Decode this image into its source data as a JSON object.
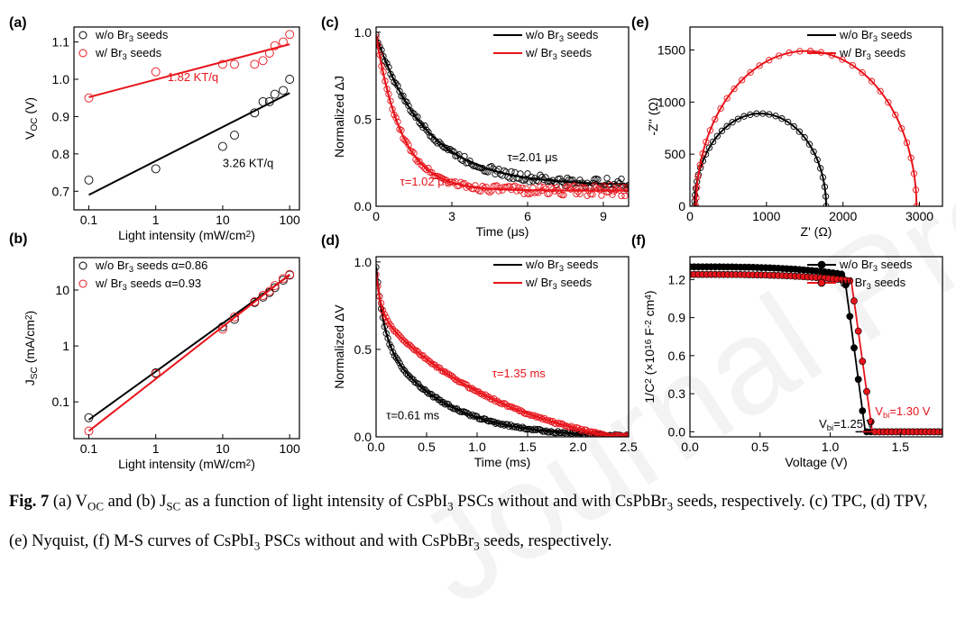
{
  "watermark": "Journal Pre-proofs",
  "caption": {
    "fig_no": "Fig. 7",
    "text_runs": [
      [
        " (a) V",
        ""
      ],
      [
        "OC",
        "sub"
      ],
      [
        " and (b) J",
        ""
      ],
      [
        "SC",
        "sub"
      ],
      [
        " as a function of light intensity of CsPbI",
        ""
      ],
      [
        "3",
        "sub"
      ],
      [
        " PSCs without and with CsPbBr",
        ""
      ],
      [
        "3",
        "sub"
      ],
      [
        " seeds, respectively. (c) TPC, (d) TPV, (e) Nyquist, (f) M-S curves of CsPbI",
        ""
      ],
      [
        "3",
        "sub"
      ],
      [
        " PSCs without and with CsPbBr",
        ""
      ],
      [
        "3",
        "sub"
      ],
      [
        " seeds, respectively.",
        ""
      ]
    ]
  },
  "colors": {
    "black_series": "#000000",
    "red_series": "#e8141b"
  },
  "chart_data": [
    {
      "panel": "(a)",
      "type": "scatter",
      "xscale": "log",
      "xlim": [
        0.06,
        140
      ],
      "ylim": [
        0.65,
        1.14
      ],
      "xticks": [
        0.1,
        1,
        10,
        100
      ],
      "xticklabels": [
        "0.1",
        "1",
        "10",
        "100"
      ],
      "yticks": [
        0.7,
        0.8,
        0.9,
        1.0,
        1.1
      ],
      "yticklabels": [
        "0.7",
        "0.8",
        "0.9",
        "1.0",
        "1.1"
      ],
      "xlabel": [
        [
          "Light intensity (mW/cm",
          ""
        ],
        [
          "2",
          "sup"
        ],
        [
          ")",
          ""
        ]
      ],
      "ylabel": [
        [
          "V",
          ""
        ],
        [
          "OC",
          "sub"
        ],
        [
          " (V)",
          ""
        ]
      ],
      "legend_pos": "top-left",
      "series": [
        {
          "name": [
            [
              "w/o Br",
              ""
            ],
            [
              "3",
              "sub"
            ],
            [
              " seeds",
              ""
            ]
          ],
          "color": "#000000",
          "x": [
            0.1,
            1,
            10,
            15,
            30,
            40,
            50,
            60,
            80,
            100
          ],
          "y": [
            0.73,
            0.76,
            0.82,
            0.85,
            0.91,
            0.94,
            0.94,
            0.96,
            0.97,
            1.0
          ],
          "fit": {
            "x": [
              0.1,
              100
            ],
            "y": [
              0.69,
              0.963
            ]
          }
        },
        {
          "name": [
            [
              "w/  Br",
              ""
            ],
            [
              "3",
              "sub"
            ],
            [
              " seeds",
              ""
            ]
          ],
          "color": "#e8141b",
          "x": [
            0.1,
            1,
            10,
            15,
            30,
            40,
            50,
            60,
            80,
            100
          ],
          "y": [
            0.95,
            1.02,
            1.04,
            1.04,
            1.04,
            1.05,
            1.07,
            1.09,
            1.1,
            1.12
          ],
          "fit": {
            "x": [
              0.1,
              100
            ],
            "y": [
              0.952,
              1.094
            ]
          }
        }
      ],
      "annotations": [
        {
          "text": "1.82 KT/q",
          "color": "#e8141b",
          "x": 1.5,
          "y": 0.995
        },
        {
          "text": "3.26 KT/q",
          "color": "#000000",
          "x": 10,
          "y": 0.765
        }
      ]
    },
    {
      "panel": "(b)",
      "type": "scatter",
      "xscale": "log",
      "yscale": "log",
      "xlim": [
        0.06,
        140
      ],
      "ylim": [
        0.022,
        38
      ],
      "xticks": [
        0.1,
        1,
        10,
        100
      ],
      "xticklabels": [
        "0.1",
        "1",
        "10",
        "100"
      ],
      "yticks": [
        0.1,
        1,
        10
      ],
      "yticklabels": [
        "0.1",
        "1",
        "10"
      ],
      "xlabel": [
        [
          "Light intensity (mW/cm",
          ""
        ],
        [
          "2",
          "sup"
        ],
        [
          ")",
          ""
        ]
      ],
      "ylabel": [
        [
          "J",
          ""
        ],
        [
          "SC",
          "sub"
        ],
        [
          " (mA/cm",
          ""
        ],
        [
          "2",
          "sup"
        ],
        [
          ")",
          ""
        ]
      ],
      "legend_pos": "top-left",
      "series": [
        {
          "name": [
            [
              "w/o Br",
              ""
            ],
            [
              "3",
              "sub"
            ],
            [
              " seeds  α=0.86",
              ""
            ]
          ],
          "color": "#000000",
          "x": [
            0.1,
            1,
            10,
            15,
            30,
            40,
            50,
            60,
            80,
            100
          ],
          "y": [
            0.052,
            0.33,
            2.2,
            3.0,
            6.0,
            7.5,
            9.0,
            11,
            15,
            18.5
          ],
          "fit": {
            "x": [
              0.1,
              100
            ],
            "y": [
              0.048,
              18.5
            ]
          }
        },
        {
          "name": [
            [
              "w/  Br",
              ""
            ],
            [
              "3",
              "sub"
            ],
            [
              " seeds  α=0.93",
              ""
            ]
          ],
          "color": "#e8141b",
          "x": [
            0.1,
            1,
            10,
            15,
            30,
            40,
            50,
            60,
            80,
            100
          ],
          "y": [
            0.03,
            0.32,
            2.0,
            3.3,
            6.2,
            8.0,
            9.5,
            12,
            16,
            19
          ],
          "fit": {
            "x": [
              0.1,
              100
            ],
            "y": [
              0.03,
              19
            ]
          }
        }
      ]
    },
    {
      "panel": "(c)",
      "type": "scatter",
      "xlim": [
        0,
        10
      ],
      "ylim": [
        0,
        1.03
      ],
      "xticks": [
        0,
        3,
        6,
        9
      ],
      "xticklabels": [
        "0",
        "3",
        "6",
        "9"
      ],
      "yticks": [
        0,
        0.5,
        1.0
      ],
      "yticklabels": [
        "0.0",
        "0.5",
        "1.0"
      ],
      "xlabel": [
        [
          "Time (μs)",
          ""
        ]
      ],
      "ylabel": [
        [
          "Normalized ΔJ",
          ""
        ]
      ],
      "legend_pos": "top-right",
      "series": [
        {
          "name": [
            [
              "w/o Br",
              ""
            ],
            [
              "3",
              "sub"
            ],
            [
              " seeds",
              ""
            ]
          ],
          "color": "#000000",
          "decay": {
            "tau": 2.01,
            "a": 0.86,
            "c": 0.12
          }
        },
        {
          "name": [
            [
              "w/   Br",
              ""
            ],
            [
              "3",
              "sub"
            ],
            [
              " seeds",
              ""
            ]
          ],
          "color": "#e8141b",
          "decay": {
            "tau": 1.02,
            "a": 0.89,
            "c": 0.09
          }
        }
      ],
      "annotations": [
        {
          "text": "τ=2.01 μs",
          "color": "#000000",
          "x": 5.2,
          "y": 0.26
        },
        {
          "text": "τ=1.02 μs",
          "color": "#e8141b",
          "x": 0.95,
          "y": 0.12
        }
      ]
    },
    {
      "panel": "(d)",
      "type": "scatter",
      "xlim": [
        0,
        2.5
      ],
      "ylim": [
        0,
        1.03
      ],
      "xticks": [
        0,
        0.5,
        1.0,
        1.5,
        2.0,
        2.5
      ],
      "xticklabels": [
        "0.0",
        "0.5",
        "1.0",
        "1.5",
        "2.0",
        "2.5"
      ],
      "yticks": [
        0,
        0.5,
        1.0
      ],
      "yticklabels": [
        "0.0",
        "0.5",
        "1.0"
      ],
      "xlabel": [
        [
          "Time (ms)",
          ""
        ]
      ],
      "ylabel": [
        [
          "Normalized ΔV",
          ""
        ]
      ],
      "legend_pos": "top-right",
      "series": [
        {
          "name": [
            [
              "w/o Br",
              ""
            ],
            [
              "3",
              "sub"
            ],
            [
              " seeds",
              ""
            ]
          ],
          "color": "#000000",
          "biexp": {
            "a1": 0.38,
            "t1": 0.07,
            "a2": 0.6,
            "t2": 0.61,
            "c": -0.005
          }
        },
        {
          "name": [
            [
              "w/   Br",
              ""
            ],
            [
              "3",
              "sub"
            ],
            [
              " seeds",
              ""
            ]
          ],
          "color": "#e8141b",
          "biexp": {
            "a1": 0.22,
            "t1": 0.05,
            "a2": 0.86,
            "t2": 1.35,
            "c": -0.15
          }
        }
      ],
      "annotations": [
        {
          "text": "τ=1.35 ms",
          "color": "#e8141b",
          "x": 1.15,
          "y": 0.34
        },
        {
          "text": "τ=0.61 ms",
          "color": "#000000",
          "x": 0.1,
          "y": 0.1
        }
      ]
    },
    {
      "panel": "(e)",
      "type": "scatter",
      "xlim": [
        0,
        3300
      ],
      "ylim": [
        0,
        1720
      ],
      "xticks": [
        0,
        1000,
        2000,
        3000
      ],
      "xticklabels": [
        "0",
        "1000",
        "2000",
        "3000"
      ],
      "yticks": [
        0,
        500,
        1000,
        1500
      ],
      "yticklabels": [
        "0",
        "500",
        "1000",
        "1500"
      ],
      "xlabel": [
        [
          "Z' (Ω)",
          ""
        ]
      ],
      "ylabel": [
        [
          "-Z'' (Ω)",
          ""
        ]
      ],
      "legend_pos": "top-right",
      "series": [
        {
          "name": [
            [
              "w/o Br",
              ""
            ],
            [
              "3",
              "sub"
            ],
            [
              " seeds",
              ""
            ]
          ],
          "color": "#000000",
          "arc": {
            "z0": 60,
            "z1": 1780,
            "peak": 890
          }
        },
        {
          "name": [
            [
              "w/  Br",
              ""
            ],
            [
              "3",
              "sub"
            ],
            [
              " seeds",
              ""
            ]
          ],
          "color": "#e8141b",
          "arc": {
            "z0": 80,
            "z1": 2960,
            "peak": 1490
          }
        }
      ]
    },
    {
      "panel": "(f)",
      "type": "line",
      "xlim": [
        0,
        1.8
      ],
      "ylim": [
        -0.04,
        1.38
      ],
      "xticks": [
        0,
        0.5,
        1.0,
        1.5
      ],
      "xticklabels": [
        "0.0",
        "0.5",
        "1.0",
        "1.5"
      ],
      "yticks": [
        0,
        0.3,
        0.6,
        0.9,
        1.2
      ],
      "yticklabels": [
        "0.0",
        "0.3",
        "0.6",
        "0.9",
        "1.2"
      ],
      "xlabel": [
        [
          "Voltage (V)",
          ""
        ]
      ],
      "ylabel": [
        [
          "1/C",
          ""
        ],
        [
          "2",
          "sup"
        ],
        [
          " (×10",
          ""
        ],
        [
          "16",
          "sup"
        ],
        [
          " F",
          ""
        ],
        [
          "-2",
          "sup"
        ],
        [
          " cm",
          ""
        ],
        [
          "4",
          "sup"
        ],
        [
          ")",
          ""
        ]
      ],
      "legend_pos": "top-right",
      "series": [
        {
          "name": [
            [
              "w/o Br",
              ""
            ],
            [
              "3",
              "sub"
            ],
            [
              " seeds",
              ""
            ]
          ],
          "color": "#000000",
          "ms": {
            "y0": 1.3,
            "a": 0.06,
            "v1": 1.1,
            "vbi": 1.25
          }
        },
        {
          "name": [
            [
              "w/   Br",
              ""
            ],
            [
              "3",
              "sub"
            ],
            [
              " seeds",
              ""
            ]
          ],
          "color": "#e8141b",
          "ms": {
            "y0": 1.24,
            "a": 0.05,
            "v1": 1.15,
            "vbi": 1.3
          }
        }
      ],
      "annotations": [
        {
          "runs": [
            [
              "V",
              ""
            ],
            [
              "bi",
              "sub"
            ],
            [
              "=1.30 V",
              ""
            ]
          ],
          "color": "#e8141b",
          "x": 1.32,
          "y": 0.13
        },
        {
          "runs": [
            [
              "V",
              ""
            ],
            [
              "bi",
              "sub"
            ],
            [
              "=1.25 V",
              ""
            ]
          ],
          "color": "#000000",
          "x": 0.92,
          "y": 0.03
        }
      ]
    }
  ]
}
